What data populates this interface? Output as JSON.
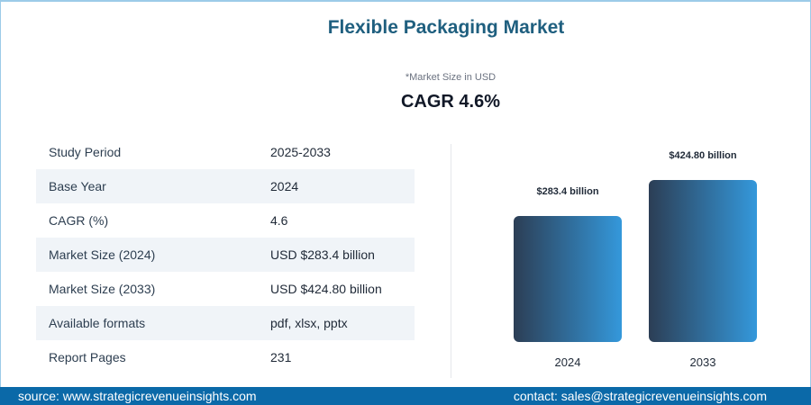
{
  "header": {
    "title": "Flexible Packaging Market",
    "note": "*Market Size in USD",
    "cagr": "CAGR 4.6%"
  },
  "table": [
    {
      "label": "Study Period",
      "value": "2025-2033"
    },
    {
      "label": "Base Year",
      "value": "2024"
    },
    {
      "label": "CAGR (%)",
      "value": "4.6"
    },
    {
      "label": "Market Size (2024)",
      "value": "USD $283.4 billion"
    },
    {
      "label": "Market Size (2033)",
      "value": "USD $424.80 billion"
    },
    {
      "label": "Available formats",
      "value": "pdf, xlsx, pptx"
    },
    {
      "label": "Report Pages",
      "value": "231"
    }
  ],
  "chart_data": {
    "type": "bar",
    "categories": [
      "2024",
      "2033"
    ],
    "values": [
      283.4,
      424.8
    ],
    "data_labels": [
      "$283.4 billion",
      "$424.80 billion"
    ],
    "unit": "USD billion",
    "colors": {
      "gradient_start": "#2c3e55",
      "gradient_end": "#3498db"
    },
    "grid": false
  },
  "footer": {
    "source": "source: www.strategicrevenueinsights.com",
    "contact": "contact: sales@strategicrevenueinsights.com"
  }
}
